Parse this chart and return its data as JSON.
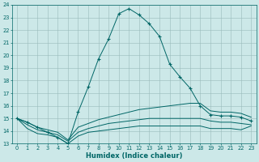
{
  "xlabel": "Humidex (Indice chaleur)",
  "bg_color": "#cce8e8",
  "grid_color": "#99bbbb",
  "line_color": "#006666",
  "xlim": [
    -0.5,
    23.5
  ],
  "ylim": [
    13,
    24
  ],
  "xticks": [
    0,
    1,
    2,
    3,
    4,
    5,
    6,
    7,
    8,
    9,
    10,
    11,
    12,
    13,
    14,
    15,
    16,
    17,
    18,
    19,
    20,
    21,
    22,
    23
  ],
  "yticks": [
    13,
    14,
    15,
    16,
    17,
    18,
    19,
    20,
    21,
    22,
    23,
    24
  ],
  "series": [
    {
      "x": [
        0,
        1,
        2,
        3,
        4,
        5,
        6,
        7,
        8,
        9,
        10,
        11,
        12,
        13,
        14,
        15,
        16,
        17,
        18,
        19,
        20,
        21,
        22,
        23
      ],
      "y": [
        15.0,
        14.7,
        14.3,
        13.9,
        13.5,
        13.0,
        15.5,
        17.5,
        19.7,
        21.3,
        23.3,
        23.7,
        23.2,
        22.5,
        21.5,
        19.3,
        18.3,
        17.4,
        16.0,
        15.3,
        15.2,
        15.2,
        15.1,
        14.8
      ],
      "marker": "+",
      "linestyle": "-"
    },
    {
      "x": [
        0,
        1,
        2,
        3,
        4,
        5,
        6,
        7,
        8,
        9,
        10,
        11,
        12,
        13,
        14,
        15,
        16,
        17,
        18,
        19,
        20,
        21,
        22,
        23
      ],
      "y": [
        15.0,
        14.7,
        14.3,
        14.1,
        13.9,
        13.3,
        14.3,
        14.6,
        14.9,
        15.1,
        15.3,
        15.5,
        15.7,
        15.8,
        15.9,
        16.0,
        16.1,
        16.2,
        16.2,
        15.6,
        15.5,
        15.5,
        15.4,
        15.1
      ],
      "marker": null,
      "linestyle": "-"
    },
    {
      "x": [
        0,
        1,
        2,
        3,
        4,
        5,
        6,
        7,
        8,
        9,
        10,
        11,
        12,
        13,
        14,
        15,
        16,
        17,
        18,
        19,
        20,
        21,
        22,
        23
      ],
      "y": [
        15.0,
        14.5,
        14.1,
        13.9,
        13.7,
        13.2,
        13.9,
        14.2,
        14.4,
        14.6,
        14.7,
        14.8,
        14.9,
        15.0,
        15.0,
        15.0,
        15.0,
        15.0,
        15.0,
        14.8,
        14.7,
        14.7,
        14.6,
        14.5
      ],
      "marker": null,
      "linestyle": "-"
    },
    {
      "x": [
        0,
        1,
        2,
        3,
        4,
        5,
        6,
        7,
        8,
        9,
        10,
        11,
        12,
        13,
        14,
        15,
        16,
        17,
        18,
        19,
        20,
        21,
        22,
        23
      ],
      "y": [
        15.0,
        14.2,
        13.8,
        13.7,
        13.5,
        13.0,
        13.6,
        13.9,
        14.0,
        14.1,
        14.2,
        14.3,
        14.4,
        14.4,
        14.4,
        14.4,
        14.4,
        14.4,
        14.4,
        14.2,
        14.2,
        14.2,
        14.1,
        14.4
      ],
      "marker": null,
      "linestyle": "-"
    }
  ]
}
